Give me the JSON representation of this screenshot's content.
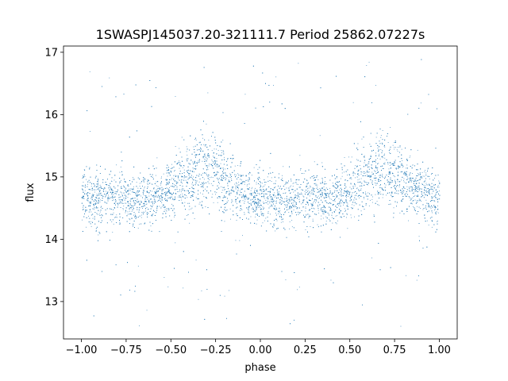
{
  "chart_data": {
    "type": "scatter",
    "title": "1SWASPJ145037.20-321111.7 Period 25862.07227s",
    "xlabel": "phase",
    "ylabel": "flux",
    "xlim": [
      -1.1,
      1.1
    ],
    "ylim": [
      12.4,
      17.1
    ],
    "x_ticks": [
      -1.0,
      -0.75,
      -0.5,
      -0.25,
      0.0,
      0.25,
      0.5,
      0.75,
      1.0
    ],
    "x_tick_labels": [
      "−1.00",
      "−0.75",
      "−0.50",
      "−0.25",
      "0.00",
      "0.25",
      "0.50",
      "0.75",
      "1.00"
    ],
    "y_ticks": [
      13,
      14,
      15,
      16,
      17
    ],
    "y_tick_labels": [
      "13",
      "14",
      "15",
      "16",
      "17"
    ],
    "grid": false,
    "marker_color": "#1f77b4",
    "series": [
      {
        "x_range": [
          -1.0,
          1.0
        ],
        "baseline_flux": 14.65,
        "scatter_sigma": 0.22,
        "hump_centers": [
          -0.32,
          0.68
        ],
        "hump_flux": 15.3,
        "hump_width": 0.12,
        "outlier_range": [
          12.6,
          16.9
        ]
      }
    ]
  }
}
